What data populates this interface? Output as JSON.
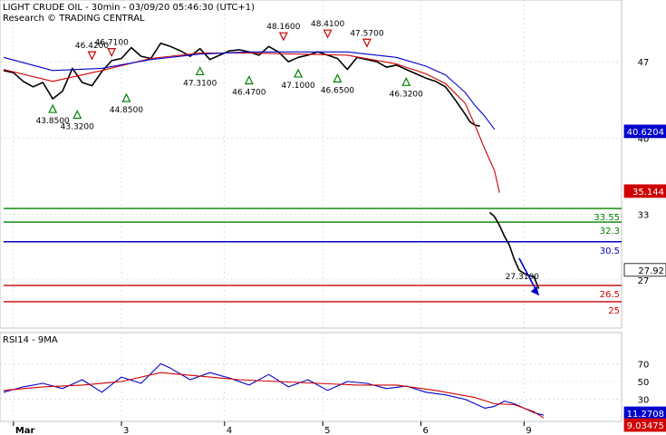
{
  "header": {
    "line1": "LIGHT CRUDE OIL - 30min - 03/09/20 05:46:30 (UTC+1)",
    "line2": "Research © TRADING CENTRAL"
  },
  "colors": {
    "price": "#000000",
    "ma_fast": "#d00000",
    "ma_slow": "#0000cc",
    "support": "#008000",
    "pivot": "#0000cc",
    "resistance": "#cc0000",
    "grid": "#cccccc",
    "up_marker": "#008000",
    "down_marker": "#cc0000"
  },
  "chart_data": [
    {
      "type": "line",
      "panel": "price",
      "title": "LIGHT CRUDE OIL - 30min - 03/09/20 05:46:30 (UTC+1)",
      "ylim": [
        24,
        51
      ],
      "y_ticks": [
        47,
        40,
        33,
        27
      ],
      "x_tick_labels": [
        "Mar",
        "3",
        "4",
        "5",
        "6",
        "9"
      ],
      "series": [
        {
          "name": "",
          "role": "price",
          "x": [
            0,
            2,
            4,
            6,
            8,
            10,
            12,
            14,
            16,
            18,
            20,
            22,
            24,
            26,
            28,
            30,
            32,
            34,
            36,
            38,
            40,
            42,
            44,
            46,
            48,
            50,
            52,
            54,
            56,
            58,
            60,
            62,
            64,
            66,
            68,
            70,
            72,
            74,
            76,
            78,
            80,
            82,
            84,
            86,
            88,
            90,
            92,
            94,
            95,
            96,
            97,
            98,
            99,
            100,
            101,
            102,
            103,
            104,
            105,
            106,
            107,
            108,
            109
          ],
          "values": [
            46.2,
            46.0,
            45.2,
            44.7,
            45.1,
            43.6,
            44.3,
            46.4,
            45.1,
            44.8,
            46.1,
            47.1,
            47.3,
            48.3,
            47.5,
            47.3,
            48.7,
            48.4,
            48.0,
            47.5,
            48.2,
            47.2,
            47.6,
            48.0,
            48.1,
            47.9,
            47.6,
            48.4,
            47.9,
            47.0,
            47.4,
            47.6,
            47.9,
            47.6,
            47.3,
            46.3,
            47.4,
            47.2,
            47.0,
            46.5,
            46.7,
            46.3,
            45.9,
            45.5,
            45.2,
            44.7,
            43.5,
            42.2,
            41.5,
            41.2,
            41.1,
            null,
            33.2,
            32.8,
            32.0,
            31.0,
            30.2,
            28.9,
            27.9,
            27.6,
            27.4,
            27.3,
            26.2
          ]
        },
        {
          "name": "",
          "role": "ma_fast",
          "x": [
            0,
            10,
            20,
            30,
            40,
            50,
            60,
            70,
            80,
            86,
            90,
            94,
            96,
            98,
            100,
            101
          ],
          "values": [
            46.3,
            45.2,
            46.2,
            47.3,
            47.8,
            47.8,
            47.7,
            47.6,
            46.8,
            45.9,
            45.0,
            43.2,
            41.2,
            39.0,
            37.0,
            35.0
          ]
        },
        {
          "name": "",
          "role": "ma_slow",
          "x": [
            0,
            10,
            20,
            30,
            40,
            50,
            60,
            70,
            80,
            86,
            90,
            94,
            96,
            98,
            100
          ],
          "values": [
            47.4,
            46.2,
            46.4,
            47.2,
            47.7,
            47.9,
            47.9,
            47.9,
            47.4,
            46.6,
            45.8,
            44.2,
            43.0,
            42.0,
            40.8
          ]
        }
      ],
      "horizontal_levels": [
        {
          "label": "33.55",
          "value": 33.55,
          "role": "support"
        },
        {
          "label": "32.3",
          "value": 32.3,
          "role": "support"
        },
        {
          "label": "30.5",
          "value": 30.5,
          "role": "pivot"
        },
        {
          "label": "26.5",
          "value": 26.5,
          "role": "resistance"
        },
        {
          "label": "25",
          "value": 25,
          "role": "resistance"
        }
      ],
      "value_tags": [
        {
          "label": "40.6204",
          "value": 40.6204,
          "role": "ma_slow"
        },
        {
          "label": "35.144",
          "value": 35.144,
          "role": "ma_fast"
        },
        {
          "label": "27.92",
          "value": 27.92,
          "role": "price"
        }
      ],
      "swing_markers": [
        {
          "label": "43.8500",
          "x": 10,
          "value": 43.85,
          "direction": "low"
        },
        {
          "label": "43.3200",
          "x": 15,
          "value": 43.32,
          "direction": "low"
        },
        {
          "label": "46.4200",
          "x": 18,
          "value": 46.42,
          "direction": "high"
        },
        {
          "label": "46.7100",
          "x": 22,
          "value": 46.71,
          "direction": "high"
        },
        {
          "label": "44.8500",
          "x": 25,
          "value": 44.85,
          "direction": "low"
        },
        {
          "label": "47.3100",
          "x": 40,
          "value": 47.31,
          "direction": "low"
        },
        {
          "label": "48.1600",
          "x": 57,
          "value": 48.16,
          "direction": "high"
        },
        {
          "label": "46.4700",
          "x": 50,
          "value": 46.47,
          "direction": "low"
        },
        {
          "label": "47.1000",
          "x": 60,
          "value": 47.1,
          "direction": "low"
        },
        {
          "label": "48.4100",
          "x": 66,
          "value": 48.41,
          "direction": "high"
        },
        {
          "label": "46.6500",
          "x": 68,
          "value": 46.65,
          "direction": "low"
        },
        {
          "label": "47.5700",
          "x": 74,
          "value": 47.57,
          "direction": "high"
        },
        {
          "label": "46.3200",
          "x": 82,
          "value": 46.32,
          "direction": "low"
        }
      ],
      "annotations": [
        {
          "label": "27.3100",
          "x": 106,
          "value": 27.31
        },
        {
          "label": "",
          "type": "arrow",
          "x_from": 105,
          "y_from": 29.0,
          "x_to": 109,
          "y_to": 25.6
        }
      ]
    },
    {
      "type": "line",
      "panel": "rsi",
      "title": "RSI14 - 9MA",
      "ylim": [
        0,
        100
      ],
      "y_ticks": [
        70,
        50,
        30
      ],
      "series": [
        {
          "name": "",
          "role": "rsi",
          "x": [
            0,
            4,
            8,
            12,
            16,
            20,
            24,
            28,
            32,
            34,
            38,
            42,
            46,
            50,
            54,
            58,
            62,
            66,
            70,
            74,
            78,
            82,
            86,
            90,
            94,
            98,
            100,
            102,
            104,
            106,
            108,
            110
          ],
          "values": [
            38,
            44,
            48,
            42,
            52,
            38,
            55,
            48,
            70,
            65,
            52,
            60,
            54,
            46,
            58,
            44,
            52,
            40,
            50,
            48,
            42,
            45,
            38,
            35,
            30,
            20,
            22,
            28,
            25,
            20,
            15,
            12
          ]
        },
        {
          "name": "",
          "role": "rsi_ma",
          "x": [
            0,
            8,
            16,
            24,
            32,
            40,
            48,
            56,
            64,
            72,
            80,
            88,
            96,
            100,
            104,
            108,
            110
          ],
          "values": [
            40,
            44,
            46,
            50,
            60,
            56,
            52,
            50,
            48,
            46,
            46,
            40,
            32,
            25,
            24,
            16,
            9
          ]
        }
      ],
      "value_tags": [
        {
          "label": "11.2708",
          "value": 11.2708,
          "role": "rsi"
        },
        {
          "label": "9.03475",
          "value": 9.03475,
          "role": "rsi_ma"
        }
      ]
    }
  ]
}
